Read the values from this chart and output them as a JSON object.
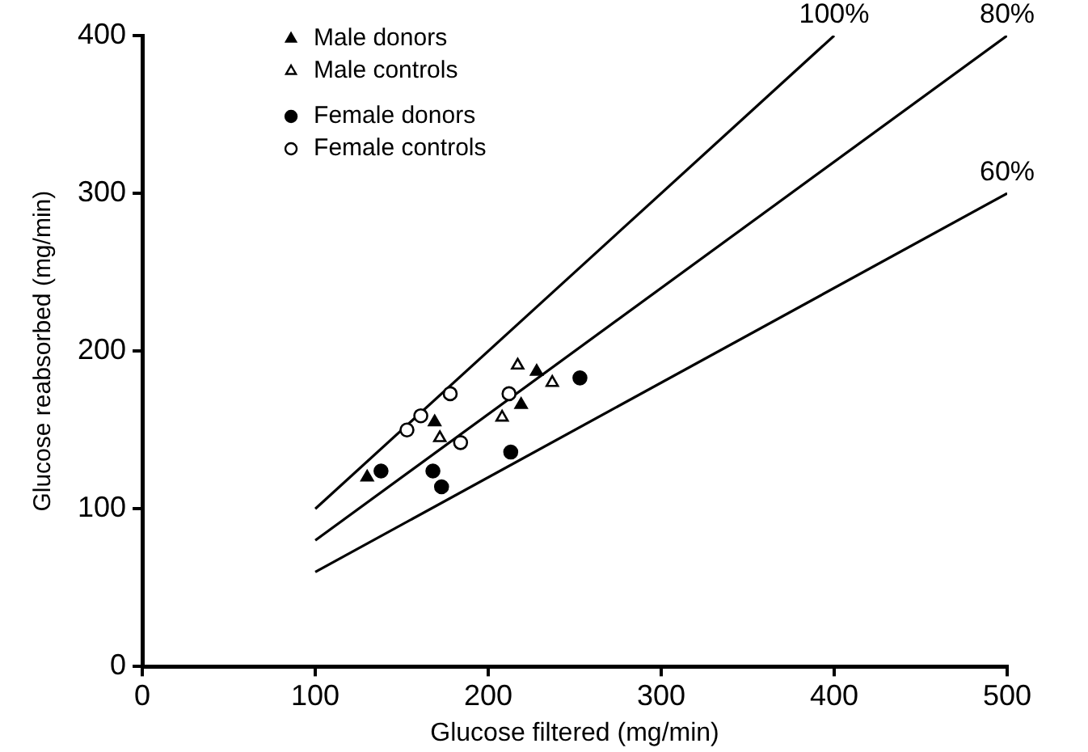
{
  "chart_data": {
    "type": "scatter",
    "xlabel": "Glucose filtered (mg/min)",
    "ylabel": "Glucose reabsorbed (mg/min)",
    "xlim": [
      0,
      500
    ],
    "ylim": [
      0,
      400
    ],
    "xticks": [
      0,
      100,
      200,
      300,
      400,
      500
    ],
    "yticks": [
      0,
      100,
      200,
      300,
      400
    ],
    "grid": false,
    "legend": "top left",
    "series": [
      {
        "name": "Male donors",
        "color": "#000000",
        "marker": "triangle",
        "x": [
          130,
          169,
          228,
          219
        ],
        "values": [
          120,
          155,
          187,
          166
        ]
      },
      {
        "name": "Male controls",
        "color": "#ffffff",
        "marker": "triangle",
        "x": [
          217,
          237,
          208,
          172
        ],
        "values": [
          191,
          180,
          158,
          145
        ]
      },
      {
        "name": "Female donors",
        "color": "#000000",
        "marker": "circle",
        "x": [
          138,
          168,
          173,
          213,
          253
        ],
        "values": [
          124,
          124,
          114,
          136,
          183
        ]
      },
      {
        "name": "Female controls",
        "color": "#ffffff",
        "marker": "circle",
        "x": [
          153,
          161,
          178,
          184,
          212
        ],
        "values": [
          150,
          159,
          173,
          142,
          173
        ]
      },
      {
        "name": "100%",
        "type": "line",
        "color": "#000000",
        "marker": "none",
        "x": [
          100,
          400
        ],
        "values": [
          100,
          400
        ]
      },
      {
        "name": "80%",
        "type": "line",
        "color": "#000000",
        "marker": "none",
        "x": [
          100,
          500
        ],
        "values": [
          80,
          400
        ]
      },
      {
        "name": "60%",
        "type": "line",
        "color": "#000000",
        "marker": "none",
        "x": [
          100,
          500
        ],
        "values": [
          60,
          300
        ]
      }
    ]
  }
}
